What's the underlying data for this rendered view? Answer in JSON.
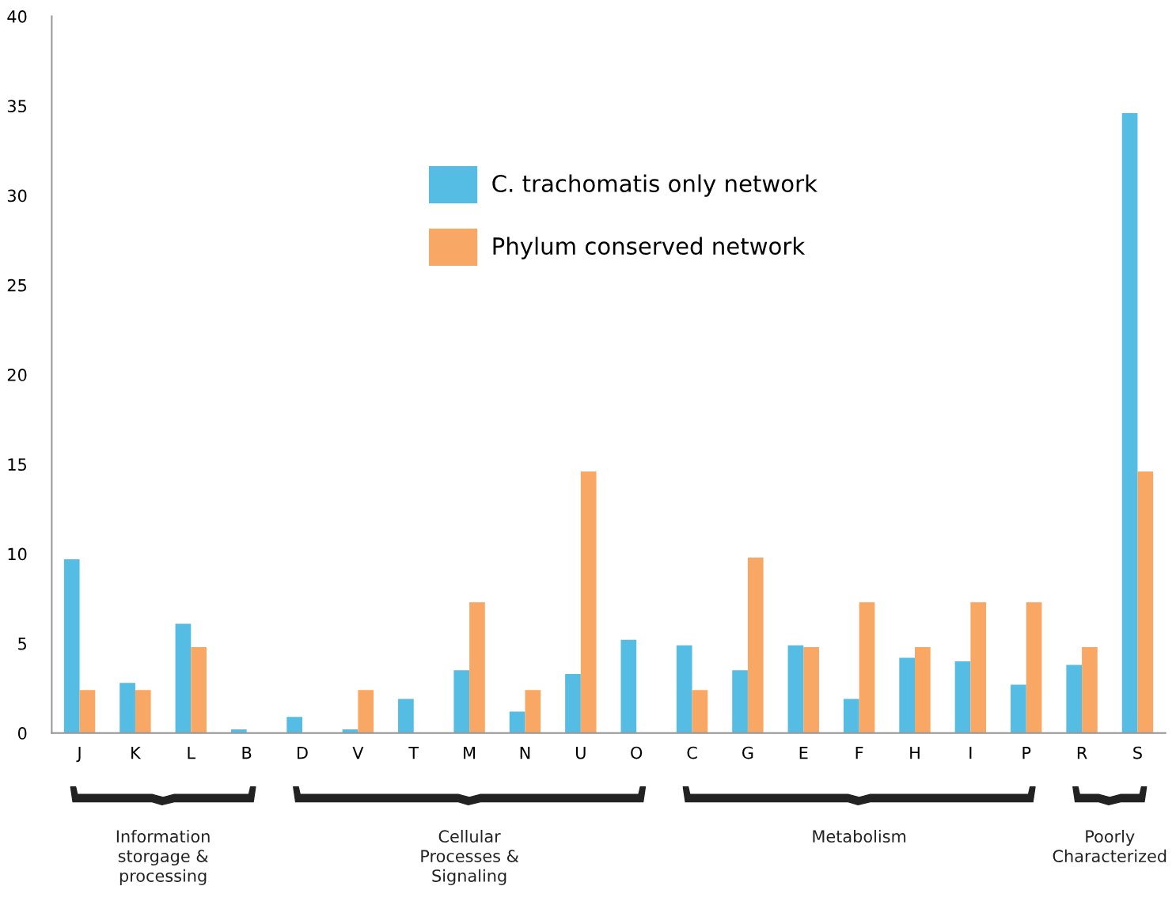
{
  "chart_data": {
    "type": "bar",
    "categories": [
      "J",
      "K",
      "L",
      "B",
      "D",
      "V",
      "T",
      "M",
      "N",
      "U",
      "O",
      "C",
      "G",
      "E",
      "F",
      "H",
      "I",
      "P",
      "R",
      "S"
    ],
    "series": [
      {
        "name": "C. trachomatis only network",
        "color": "#55bde3",
        "values": [
          9.7,
          2.8,
          6.1,
          0.2,
          0.9,
          0.2,
          1.9,
          3.5,
          1.2,
          3.3,
          5.2,
          4.9,
          3.5,
          4.9,
          1.9,
          4.2,
          4.0,
          2.7,
          3.8,
          34.6
        ]
      },
      {
        "name": "Phylum conserved network",
        "color": "#f8a864",
        "values": [
          2.4,
          2.4,
          4.8,
          0,
          0,
          2.4,
          0,
          7.3,
          2.4,
          14.6,
          0,
          2.4,
          9.8,
          4.8,
          7.3,
          4.8,
          7.3,
          7.3,
          4.8,
          14.6
        ]
      }
    ],
    "ylim": [
      0,
      40
    ],
    "yticks": [
      0,
      5,
      10,
      15,
      20,
      25,
      30,
      35,
      40
    ],
    "grid": false,
    "legend": "top left",
    "annotations": [
      "Information\nstorgage &\nprocessing",
      "Cellular\nProcesses &\nSignaling",
      "Metabolism",
      "Poorly\nCharacterized"
    ]
  }
}
